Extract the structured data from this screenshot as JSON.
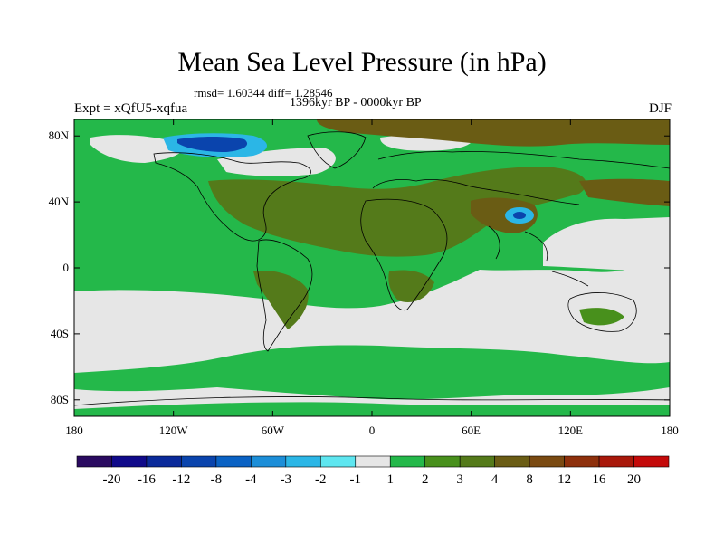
{
  "header": {
    "title": "Mean Sea Level Pressure (in hPa)",
    "stats": "rmsd= 1.60344  diff= 1.28546",
    "period": "1396kyr BP - 0000kyr BP",
    "experiment": "Expt = xQfU5-xqfua",
    "season": "DJF"
  },
  "axes": {
    "y_ticks": [
      {
        "label": "80N",
        "lat": 80
      },
      {
        "label": "40N",
        "lat": 40
      },
      {
        "label": "0",
        "lat": 0
      },
      {
        "label": "40S",
        "lat": -40
      },
      {
        "label": "80S",
        "lat": -80
      }
    ],
    "x_ticks": [
      {
        "label": "180",
        "lon": -180
      },
      {
        "label": "120W",
        "lon": -120
      },
      {
        "label": "60W",
        "lon": -60
      },
      {
        "label": "0",
        "lon": 0
      },
      {
        "label": "60E",
        "lon": 60
      },
      {
        "label": "120E",
        "lon": 120
      },
      {
        "label": "180",
        "lon": 180
      }
    ],
    "lon_range": [
      -180,
      180
    ],
    "lat_range": [
      -90,
      90
    ]
  },
  "colorbar": {
    "colors": [
      "#2a0a60",
      "#100a8a",
      "#0a2a9a",
      "#0a44ad",
      "#0a62c4",
      "#1c8ed8",
      "#2bb6e6",
      "#5ee6f0",
      "#e6e6e6",
      "#24b84a",
      "#48901c",
      "#547a1a",
      "#6a5c14",
      "#7a4a12",
      "#8e300c",
      "#a8180a",
      "#c40a0a"
    ],
    "labels": [
      "-20",
      "-16",
      "-12",
      "-8",
      "-4",
      "-3",
      "-2",
      "-1",
      "1",
      "2",
      "3",
      "4",
      "8",
      "12",
      "16",
      "20"
    ]
  },
  "field_colors": {
    "neutral": "#e6e6e6",
    "c1_2": "#24b84a",
    "c2_3": "#48901c",
    "c3_4": "#547a1a",
    "c4_8": "#6a5c14",
    "neg_2": "#2bb6e6",
    "neg_4": "#1c8ed8",
    "neg_8": "#0a44ad",
    "coast": "#000000"
  }
}
